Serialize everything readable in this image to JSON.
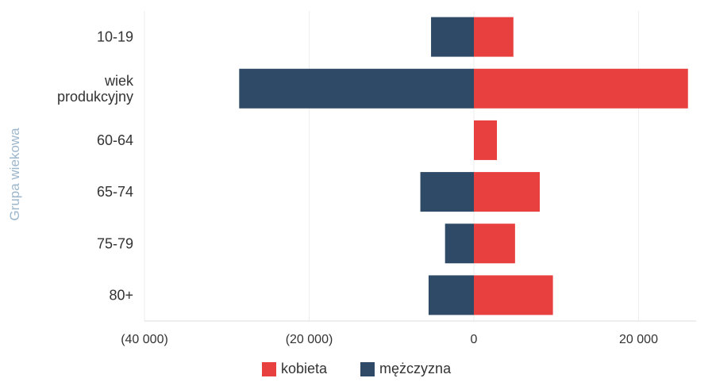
{
  "chart_data": {
    "type": "bar",
    "orientation": "horizontal",
    "stacked": "diverging",
    "ylabel": "Grupa wiekowa",
    "xlabel": "",
    "title": "",
    "categories": [
      "10-19",
      "wiek\nprodukcyjny",
      "60-64",
      "65-74",
      "75-79",
      "80+"
    ],
    "series": [
      {
        "name": "kobieta",
        "color": "#e8403f",
        "values": [
          4800,
          26000,
          2800,
          8000,
          5000,
          9600
        ]
      },
      {
        "name": "mężczyzna",
        "color": "#2e4a66",
        "values": [
          -5200,
          -28500,
          0,
          -6500,
          -3500,
          -5500
        ]
      }
    ],
    "xlim": [
      -40000,
      28000
    ],
    "xticks": [
      -40000,
      -20000,
      0,
      20000
    ],
    "xtick_labels": [
      "(40 000)",
      "(20 000)",
      "0",
      "20 000"
    ],
    "grid": true,
    "legend_position": "bottom"
  }
}
